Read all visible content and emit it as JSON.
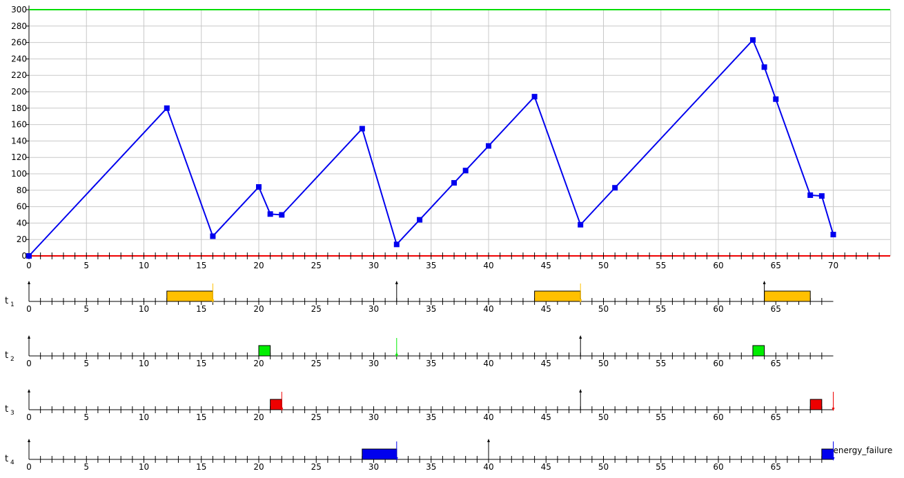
{
  "chart_data": {
    "type": "line",
    "energy_plot": {
      "x": [
        0,
        12,
        16,
        20,
        21,
        22,
        29,
        32,
        34,
        37,
        38,
        40,
        44,
        48,
        51,
        63,
        64,
        65,
        68,
        69,
        70
      ],
      "y": [
        0,
        180,
        24,
        84,
        51,
        50,
        155,
        14,
        44,
        89,
        104,
        134,
        194,
        38,
        83,
        263,
        230,
        191,
        74,
        73,
        26
      ],
      "ylim": [
        0,
        300
      ],
      "yticks": [
        0,
        20,
        40,
        60,
        80,
        100,
        120,
        140,
        160,
        180,
        200,
        220,
        240,
        260,
        280,
        300
      ],
      "xlim": [
        0,
        75
      ],
      "xtick_labels": [
        0,
        5,
        10,
        15,
        20,
        25,
        30,
        35,
        40,
        45,
        50,
        55,
        60,
        65,
        70
      ],
      "max_line": 300,
      "min_line": 0,
      "grid": true,
      "colors": {
        "series": "#0000ee",
        "max": "#00dd00",
        "min": "#ee0000"
      }
    },
    "timelines": [
      {
        "label": "t",
        "sub": "1",
        "color": "#ffc000",
        "releases": [
          0,
          32,
          64
        ],
        "deadlines": [
          16,
          48
        ],
        "jobs": [
          [
            12,
            16
          ],
          [
            44,
            48
          ],
          [
            64,
            68
          ]
        ],
        "xtick_labels": [
          0,
          5,
          10,
          15,
          20,
          25,
          30,
          35,
          40,
          45,
          50,
          55,
          60,
          65
        ]
      },
      {
        "label": "t",
        "sub": "2",
        "color": "#00ee00",
        "releases": [
          0,
          48
        ],
        "deadlines": [
          32
        ],
        "jobs": [
          [
            20,
            21
          ],
          [
            63,
            64
          ]
        ],
        "xtick_labels": [
          0,
          5,
          10,
          15,
          20,
          25,
          30,
          35,
          40,
          45,
          50,
          55,
          60,
          65
        ]
      },
      {
        "label": "t",
        "sub": "3",
        "color": "#ee0000",
        "releases": [
          0,
          48
        ],
        "deadlines": [
          22,
          70
        ],
        "jobs": [
          [
            21,
            22
          ],
          [
            68,
            69
          ]
        ],
        "xtick_labels": [
          0,
          5,
          10,
          15,
          20,
          25,
          30,
          35,
          40,
          45,
          50,
          55,
          60,
          65
        ]
      },
      {
        "label": "t",
        "sub": "4",
        "color": "#0000ee",
        "releases": [
          0,
          40
        ],
        "deadlines": [
          32,
          70
        ],
        "jobs": [
          [
            29,
            32
          ],
          [
            69,
            70
          ]
        ],
        "xtick_labels": [
          0,
          5,
          10,
          15,
          20,
          25,
          30,
          35,
          40,
          45,
          50,
          55,
          60,
          65
        ],
        "annotation": "energy_failure"
      }
    ]
  }
}
